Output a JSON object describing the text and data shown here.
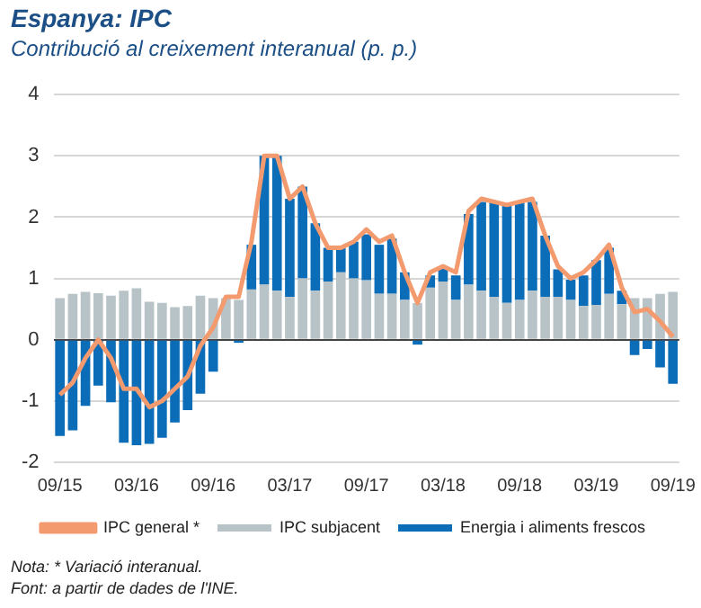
{
  "chart_data": {
    "type": "bar",
    "title": "Espanya: IPC",
    "subtitle": "Contribució al creixement interanual (p. p.)",
    "categories": [
      "09/15",
      null,
      null,
      null,
      null,
      null,
      "03/16",
      null,
      null,
      null,
      null,
      null,
      "09/16",
      null,
      null,
      null,
      null,
      null,
      "03/17",
      null,
      null,
      null,
      null,
      null,
      "09/17",
      null,
      null,
      null,
      null,
      null,
      "03/18",
      null,
      null,
      null,
      null,
      null,
      "09/18",
      null,
      null,
      null,
      null,
      null,
      "03/19",
      null,
      null,
      null,
      null,
      null,
      "09/19"
    ],
    "stacked": true,
    "series": [
      {
        "name": "IPC subjacent",
        "color": "#b8c3c8",
        "values": [
          0.68,
          0.75,
          0.78,
          0.76,
          0.72,
          0.8,
          0.84,
          0.62,
          0.6,
          0.53,
          0.55,
          0.72,
          0.68,
          0.68,
          0.65,
          0.82,
          0.9,
          0.8,
          0.7,
          1.0,
          0.8,
          0.95,
          1.1,
          1.0,
          0.97,
          0.75,
          0.75,
          0.65,
          0.6,
          0.85,
          0.95,
          0.65,
          0.9,
          0.8,
          0.7,
          0.6,
          0.65,
          0.8,
          0.7,
          0.7,
          0.65,
          0.55,
          0.57,
          0.75,
          0.58,
          0.68,
          0.68,
          0.75,
          0.78
        ]
      },
      {
        "name": "Energia i aliments frescos",
        "color": "#0b6db8",
        "values": [
          -1.57,
          -1.48,
          -1.08,
          -0.75,
          -1.02,
          -1.68,
          -1.72,
          -1.7,
          -1.6,
          -1.35,
          -1.15,
          -0.88,
          -0.52,
          0,
          -0.05,
          0.73,
          2.1,
          2.2,
          1.6,
          1.5,
          1.1,
          0.55,
          0.4,
          0.6,
          0.75,
          0.8,
          0.9,
          0.45,
          -0.08,
          0.2,
          0.25,
          0.4,
          1.15,
          1.45,
          1.55,
          1.6,
          1.6,
          1.45,
          1.0,
          0.45,
          0.33,
          0.5,
          0.73,
          0.75,
          0.22,
          -0.25,
          -0.15,
          -0.45,
          -0.72
        ]
      },
      {
        "name": "IPC general *",
        "type": "line",
        "color": "#f39a6f",
        "values": [
          -0.9,
          -0.7,
          -0.3,
          0.0,
          -0.3,
          -0.8,
          -0.8,
          -1.1,
          -1.0,
          -0.8,
          -0.6,
          -0.1,
          0.2,
          0.7,
          0.7,
          1.6,
          3.0,
          3.0,
          2.3,
          2.5,
          1.9,
          1.5,
          1.5,
          1.6,
          1.8,
          1.6,
          1.7,
          1.1,
          0.6,
          1.1,
          1.2,
          1.1,
          2.1,
          2.3,
          2.25,
          2.2,
          2.25,
          2.3,
          1.7,
          1.2,
          1.0,
          1.1,
          1.3,
          1.55,
          0.85,
          0.45,
          0.5,
          0.3,
          0.05
        ]
      }
    ],
    "ylim": [
      -2,
      4
    ],
    "yticks": [
      -2,
      -1,
      0,
      1,
      2,
      3,
      4
    ],
    "grid": "y",
    "legend": "bottom",
    "marker": "none",
    "annotations": [
      "Nota: * Variació interanual.",
      "Font: a partir de dades de l'INE."
    ]
  }
}
